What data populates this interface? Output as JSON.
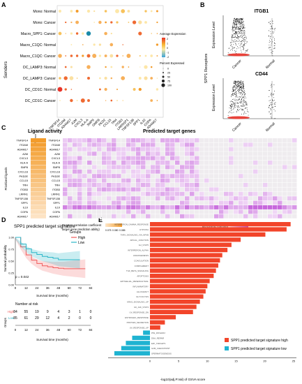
{
  "panel_letters": [
    "A",
    "B",
    "C",
    "D",
    "E"
  ],
  "panelA": {
    "ylabel": "Senders",
    "rows": [
      "Mono: Normal",
      "Mono: Cancer",
      "Macro_SPP1: Cancer",
      "Macro_C1QC: Normal",
      "Macro_C1QC: Cancer",
      "DC_LAMP3: Normal",
      "DC_LAMP3: Cancer",
      "DC_CD1C: Normal",
      "DC_CD1C: Cancer"
    ],
    "cols": [
      "TNFSF14",
      "ITGAM",
      "ADAM17",
      "A2M",
      "CXCL3",
      "HLA-A",
      "SMP8",
      "GMFB",
      "PKD2",
      "CCL15",
      "TRH",
      "ITGB3",
      "LRRN1P1",
      "TNFSF13B",
      "SPP1",
      "IL10",
      "COPA",
      "ADAM17"
    ],
    "legend_expr_title": "Average Expression",
    "legend_expr_ticks": [
      "2",
      "1",
      "0",
      "-1",
      "-2"
    ],
    "legend_pct_title": "Percent Expressed",
    "legend_pct_ticks": [
      "0",
      "25",
      "50",
      "75",
      "100"
    ]
  },
  "panelB": {
    "ylabel_shared": "SPP1 Receptors",
    "plots": [
      {
        "title": "ITGB1",
        "ylabel": "Expression Level",
        "groups": [
          "Cancer",
          "Normal"
        ]
      },
      {
        "title": "CD44",
        "ylabel": "Expression Level",
        "groups": [
          "Cancer",
          "Normal"
        ]
      }
    ]
  },
  "panelC": {
    "title_left": "Ligand activity",
    "title_right": "Predicted target genes",
    "col_left_label": "Pearson",
    "rows_label": "Prioritized ligands",
    "ligands": [
      "TNFSF14",
      "ITGAM",
      "ADAM17",
      "A2M",
      "CXCL3",
      "HLA-A",
      "SMP8",
      "CXCL16",
      "PKD2E",
      "CCL15",
      "TRH",
      "ITGB3",
      "LRRN1",
      "TNFSF13B",
      "SPP1",
      "IL10",
      "COPA",
      "ADAM17"
    ],
    "legend_left_title": "Pearson correlation coefficient\ntarget gene prediction ability)",
    "legend_left_ticks": [
      "0.075",
      "0.080",
      "0.085"
    ],
    "legend_right_title": "Regulatory potential",
    "colors": {
      "orange": "#f39c2b",
      "violet": "#c05fd8",
      "light": "#f0eaf2"
    }
  },
  "panelD": {
    "title": "SPP1 predicted target signature",
    "legend_title": "Groups",
    "legend_items": [
      {
        "label": "High",
        "color": "#f05b5b"
      },
      {
        "label": "Low",
        "color": "#2bb6c8"
      }
    ],
    "pvalue": "p = 0.042",
    "ylabel": "Survival probability",
    "xlabel": "Survival time (months)",
    "x_ticks": [
      "0",
      "12",
      "24",
      "36",
      "48",
      "60",
      "72",
      "84"
    ],
    "y_ticks": [
      "0.00",
      "0.25",
      "0.50",
      "0.75",
      "1.00"
    ],
    "risk_title": "Number at risk",
    "risk_groups_label": "Groups",
    "risk_rows": [
      {
        "label": "High",
        "color": "#f05b5b",
        "values": [
          "84",
          "55",
          "19",
          "9",
          "4",
          "3",
          "1",
          "0"
        ]
      },
      {
        "label": "Low",
        "color": "#2bb6c8",
        "values": [
          "85",
          "61",
          "29",
          "12",
          "4",
          "2",
          "0",
          "0"
        ]
      }
    ],
    "risk_xlabel": "Survival time (months)",
    "chart_data": {
      "type": "line",
      "series": [
        {
          "name": "High",
          "x": [
            0,
            6,
            12,
            18,
            24,
            30,
            36,
            42,
            48,
            54,
            60,
            66,
            72,
            78
          ],
          "y": [
            1.0,
            0.8,
            0.63,
            0.52,
            0.45,
            0.4,
            0.38,
            0.36,
            0.35,
            0.34,
            0.34,
            0.34,
            0.34,
            0.34
          ]
        },
        {
          "name": "Low",
          "x": [
            0,
            6,
            12,
            18,
            24,
            30,
            36,
            42,
            48,
            54,
            60,
            66,
            72
          ],
          "y": [
            1.0,
            0.86,
            0.76,
            0.68,
            0.64,
            0.6,
            0.58,
            0.56,
            0.53,
            0.53,
            0.53,
            0.53,
            0.53
          ]
        }
      ],
      "xlim": [
        0,
        84
      ],
      "ylim": [
        0,
        1
      ]
    }
  },
  "panelE": {
    "xlabel": "-log10(adj.P.Val) of GSVA score",
    "legend_items": [
      {
        "label": "SPP1 predicted target signature high",
        "color": "#f2452a"
      },
      {
        "label": "SPP1 predicted target signature low",
        "color": "#1fb3d1"
      }
    ],
    "x_ticks": [
      "0",
      "5",
      "10",
      "15",
      "20",
      "25"
    ],
    "chart_data": {
      "type": "bar",
      "categories": [
        "INTERFERON_GAMMA_RESPONSE",
        "HYPOXIA",
        "TNFA_SIGNALING_VIA_NFKB",
        "APICAL_JUNCTION",
        "IL2_STAT5",
        "INTERFERON_ALPHA",
        "ANGIOGENESIS",
        "COAGULATION",
        "COMPLEMENT",
        "TGF_BETA_SIGNALING",
        "APOPTOSIS",
        "EPITHELIAL_MESENCHYMAL",
        "INFLAMMATORY",
        "ALLOGRAFT",
        "GLYCOLYSIS",
        "KRAS_SIGNALING_UP",
        "IL6_JAK_STAT3",
        "UV_RESPONSE_DN",
        "ESTROGEN_RESPONSE",
        "PROTEIN_SECRETION",
        "UV_RESPONSE_UP",
        "P53_PATHWAY",
        "DNA_REPAIR",
        "E2F_TARGETS",
        "G2M_CHECKPOINT",
        "SPERMATOGENESIS"
      ],
      "values": [
        24.5,
        23.8,
        20.1,
        15.8,
        14.2,
        13.5,
        12.6,
        12.2,
        11.9,
        11.5,
        11.1,
        10.4,
        10.0,
        9.7,
        9.3,
        8.7,
        8.1,
        7.5,
        4.5,
        2.6,
        1.8,
        -1.2,
        -3.1,
        -4.2,
        -5.0,
        -6.2
      ],
      "xlim": [
        -8,
        25
      ]
    }
  }
}
